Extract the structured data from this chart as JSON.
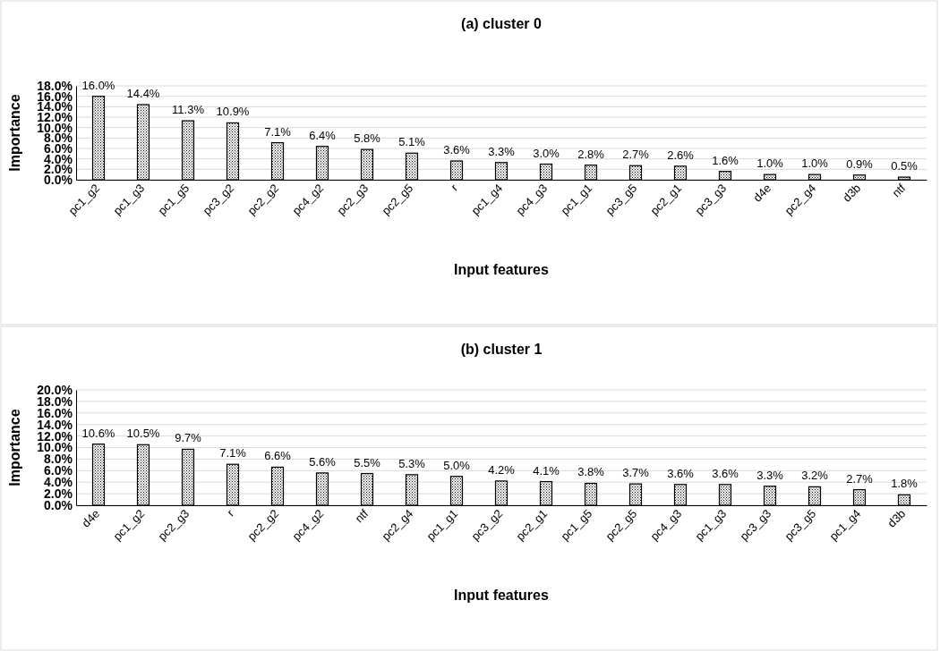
{
  "chart_data": [
    {
      "type": "bar",
      "title": "(a) cluster 0",
      "xlabel": "Input features",
      "ylabel": "Importance",
      "color": "#000000",
      "grid": "y",
      "categories": [
        "pc1_g2",
        "pc1_g3",
        "pc1_g5",
        "pc3_g2",
        "pc2_g2",
        "pc4_g2",
        "pc2_g3",
        "pc2_g5",
        "r",
        "pc1_g4",
        "pc4_g3",
        "pc1_g1",
        "pc3_g5",
        "pc2_g1",
        "pc3_g3",
        "d4e",
        "pc2_g4",
        "d3b",
        "ntf"
      ],
      "values": [
        16.0,
        14.4,
        11.3,
        10.9,
        7.1,
        6.4,
        5.8,
        5.1,
        3.6,
        3.3,
        3.0,
        2.8,
        2.7,
        2.6,
        1.6,
        1.0,
        1.0,
        0.9,
        0.5
      ],
      "value_labels": [
        "16.0%",
        "14.4%",
        "11.3%",
        "10.9%",
        "7.1%",
        "6.4%",
        "5.8%",
        "5.1%",
        "3.6%",
        "3.3%",
        "3.0%",
        "2.8%",
        "2.7%",
        "2.6%",
        "1.6%",
        "1.0%",
        "1.0%",
        "0.9%",
        "0.5%"
      ],
      "ylim": [
        0,
        18
      ],
      "yticks": [
        {
          "value": 0,
          "label": "0.0%"
        },
        {
          "value": 2,
          "label": "2.0%"
        },
        {
          "value": 4,
          "label": "4.0%"
        },
        {
          "value": 6,
          "label": "6.0%"
        },
        {
          "value": 8,
          "label": "8.0%"
        },
        {
          "value": 10,
          "label": "10.0%"
        },
        {
          "value": 12,
          "label": "12.0%"
        },
        {
          "value": 14,
          "label": "14.0%"
        },
        {
          "value": 16,
          "label": "16.0%"
        },
        {
          "value": 18,
          "label": "18.0%"
        }
      ]
    },
    {
      "type": "bar",
      "title": "(b) cluster 1",
      "xlabel": "Input features",
      "ylabel": "Importance",
      "color": "#000000",
      "grid": "y",
      "categories": [
        "d4e",
        "pc1_g2",
        "pc2_g3",
        "r",
        "pc2_g2",
        "pc4_g2",
        "ntf",
        "pc2_g4",
        "pc1_g1",
        "pc3_g2",
        "pc2_g1",
        "pc1_g5",
        "pc2_g5",
        "pc4_g3",
        "pc1_g3",
        "pc3_g3",
        "pc3_g5",
        "pc1_g4",
        "d3b"
      ],
      "values": [
        10.6,
        10.5,
        9.7,
        7.1,
        6.6,
        5.6,
        5.5,
        5.3,
        5.0,
        4.2,
        4.1,
        3.8,
        3.7,
        3.6,
        3.6,
        3.3,
        3.2,
        2.7,
        1.8
      ],
      "value_labels": [
        "10.6%",
        "10.5%",
        "9.7%",
        "7.1%",
        "6.6%",
        "5.6%",
        "5.5%",
        "5.3%",
        "5.0%",
        "4.2%",
        "4.1%",
        "3.8%",
        "3.7%",
        "3.6%",
        "3.6%",
        "3.3%",
        "3.2%",
        "2.7%",
        "1.8%"
      ],
      "ylim": [
        0,
        20
      ],
      "yticks": [
        {
          "value": 0,
          "label": "0.0%"
        },
        {
          "value": 2,
          "label": "2.0%"
        },
        {
          "value": 4,
          "label": "4.0%"
        },
        {
          "value": 6,
          "label": "6.0%"
        },
        {
          "value": 8,
          "label": "8.0%"
        },
        {
          "value": 10,
          "label": "10.0%"
        },
        {
          "value": 12,
          "label": "12.0%"
        },
        {
          "value": 14,
          "label": "14.0%"
        },
        {
          "value": 16,
          "label": "16.0%"
        },
        {
          "value": 18,
          "label": "18.0%"
        },
        {
          "value": 20,
          "label": "20.0%"
        }
      ]
    }
  ]
}
